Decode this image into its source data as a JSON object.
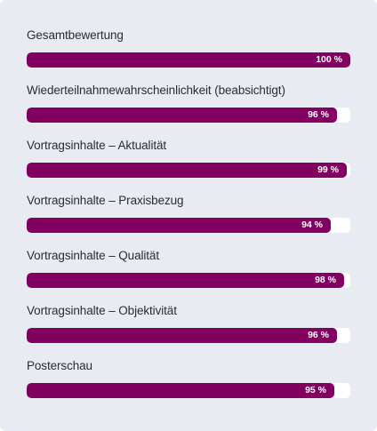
{
  "chart_data": {
    "type": "bar",
    "orientation": "horizontal",
    "categories": [
      "Gesamtbewertung",
      "Wiederteilnahmewahrscheinlichkeit (beabsichtigt)",
      "Vortragsinhalte – Aktualität",
      "Vortragsinhalte – Praxisbezug",
      "Vortragsinhalte – Qualität",
      "Vortragsinhalte – Objektivität",
      "Posterschau"
    ],
    "values": [
      100,
      96,
      99,
      94,
      98,
      96,
      95
    ],
    "value_labels": [
      "100 %",
      "96 %",
      "99 %",
      "94 %",
      "98 %",
      "96 %",
      "95 %"
    ],
    "xlim": [
      0,
      100
    ],
    "grid": false,
    "legend": "none",
    "colors": {
      "bar": "#820060",
      "track": "#ffffff",
      "background": "#e9ebf2",
      "label_text": "#2c2c2c",
      "value_text": "#ffffff"
    }
  }
}
